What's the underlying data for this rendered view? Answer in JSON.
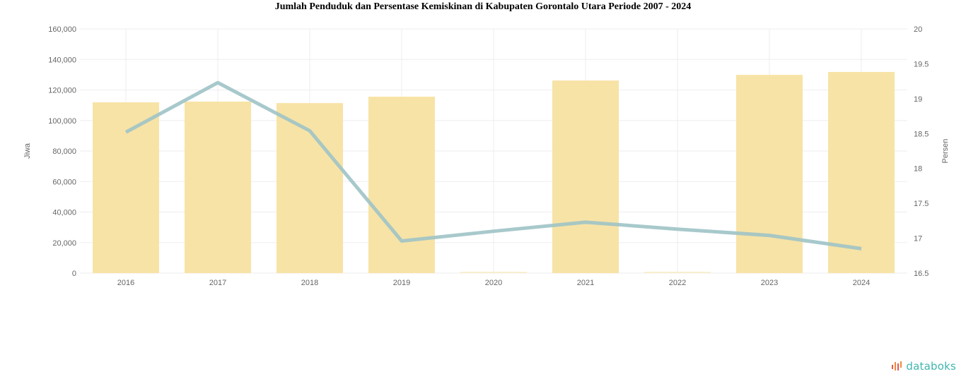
{
  "title": "Jumlah Penduduk dan Persentase Kemiskinan di Kabupaten Gorontalo Utara Periode 2007 - 2024",
  "brand": {
    "name": "databoks",
    "color": "#3fb6b0"
  },
  "colors": {
    "bar": "#f7e3a6",
    "line": "#9fc3c7",
    "grid": "#eeeeee",
    "text": "#666666"
  },
  "chart_data": {
    "type": "bar+line",
    "title": "Jumlah Penduduk dan Persentase Kemiskinan di Kabupaten Gorontalo Utara Periode 2007 - 2024",
    "categories": [
      "2016",
      "2017",
      "2018",
      "2019",
      "2020",
      "2021",
      "2022",
      "2023",
      "2024"
    ],
    "series": [
      {
        "name": "Jumlah Penduduk",
        "type": "bar",
        "axis": "left",
        "values": [
          111900,
          112400,
          111400,
          115600,
          0,
          126200,
          0,
          129900,
          131800
        ]
      },
      {
        "name": "Persentase Kemiskinan",
        "type": "line",
        "axis": "right",
        "values": [
          18.52,
          19.23,
          18.54,
          16.96,
          17.1,
          17.23,
          17.13,
          17.04,
          16.85
        ]
      }
    ],
    "ylabel": "Jiwa",
    "y2label": "Persen",
    "ylim": [
      0,
      160000
    ],
    "y2lim": [
      16.5,
      20
    ],
    "yticks": [
      "160,000",
      "140,000",
      "120,000",
      "100,000",
      "80,000",
      "60,000",
      "40,000",
      "20,000",
      "0"
    ],
    "y2ticks": [
      "20",
      "19.5",
      "19",
      "18.5",
      "18",
      "17.5",
      "17",
      "16.5"
    ],
    "grid": true,
    "legend": "none"
  }
}
